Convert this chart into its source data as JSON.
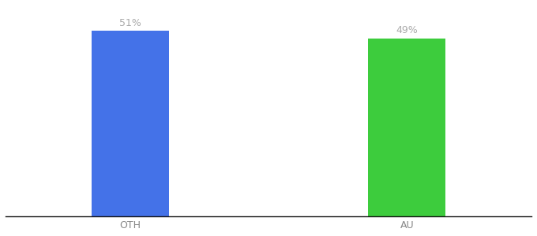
{
  "categories": [
    "OTH",
    "AU"
  ],
  "values": [
    51,
    49
  ],
  "bar_colors": [
    "#4472e8",
    "#3dcc3d"
  ],
  "value_labels": [
    "51%",
    "49%"
  ],
  "background_color": "#ffffff",
  "label_color": "#aaaaaa",
  "label_fontsize": 9,
  "tick_fontsize": 9,
  "tick_color": "#888888",
  "bar_width": 0.28,
  "ylim": [
    0,
    58
  ],
  "x_positions": [
    1,
    2
  ],
  "xlim": [
    0.55,
    2.45
  ]
}
